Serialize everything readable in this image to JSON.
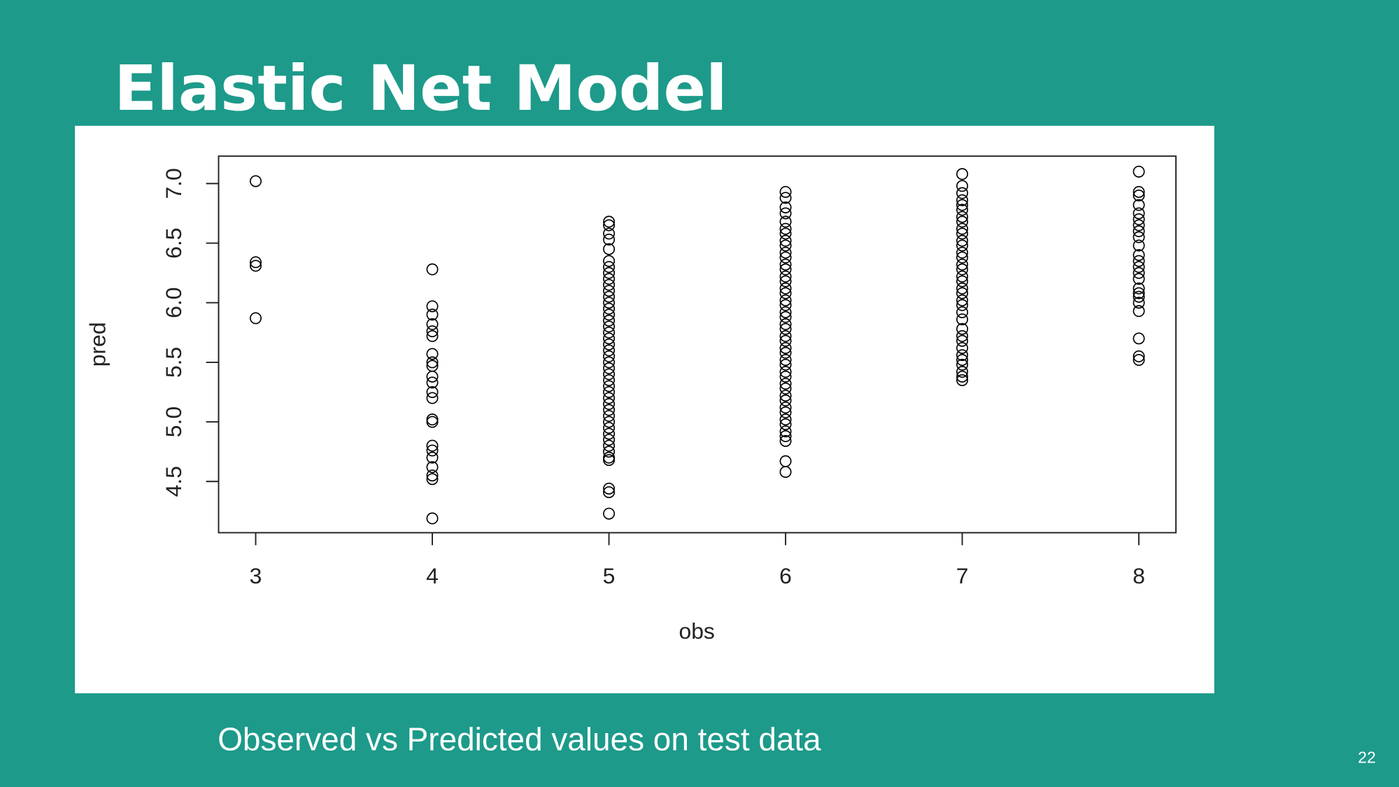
{
  "slide": {
    "title": "Elastic Net Model",
    "caption": "Observed vs Predicted values on test data",
    "page_number": "22"
  },
  "chart_data": {
    "type": "scatter",
    "x_label": "obs",
    "y_label": "pred",
    "marker_color": "#000000",
    "grid": false,
    "xlim": [
      2.79,
      8.21
    ],
    "ylim": [
      4.07,
      7.23
    ],
    "xticks": [
      3,
      4,
      5,
      6,
      7,
      8
    ],
    "yticks": [
      4.5,
      {
        "value": 5,
        "label": "5.0"
      },
      5.5,
      {
        "value": 6,
        "label": "6.0"
      },
      6.5,
      {
        "value": 7,
        "label": "7.0"
      }
    ],
    "x": [
      3,
      3,
      3,
      3,
      4,
      4,
      4,
      4,
      4,
      4,
      4,
      4,
      4,
      4,
      4,
      4,
      4,
      4,
      4,
      4,
      4,
      4,
      4,
      4,
      4,
      4,
      5,
      5,
      5,
      5,
      5,
      5,
      5,
      5,
      5,
      5,
      5,
      5,
      5,
      5,
      5,
      5,
      5,
      5,
      5,
      5,
      5,
      5,
      5,
      5,
      5,
      5,
      5,
      5,
      5,
      5,
      5,
      5,
      5,
      5,
      5,
      5,
      5,
      5,
      5,
      5,
      5,
      5,
      5,
      6,
      6,
      6,
      6,
      6,
      6,
      6,
      6,
      6,
      6,
      6,
      6,
      6,
      6,
      6,
      6,
      6,
      6,
      6,
      6,
      6,
      6,
      6,
      6,
      6,
      6,
      6,
      6,
      6,
      6,
      6,
      6,
      6,
      6,
      6,
      6,
      6,
      6,
      6,
      6,
      6,
      6,
      6,
      6,
      7,
      7,
      7,
      7,
      7,
      7,
      7,
      7,
      7,
      7,
      7,
      7,
      7,
      7,
      7,
      7,
      7,
      7,
      7,
      7,
      7,
      7,
      7,
      7,
      7,
      7,
      7,
      7,
      7,
      7,
      7,
      7,
      7,
      7,
      8,
      8,
      8,
      8,
      8,
      8,
      8,
      8,
      8,
      8,
      8,
      8,
      8,
      8,
      8,
      8,
      8,
      8,
      8,
      8,
      8,
      8,
      8
    ],
    "y": [
      7.02,
      6.34,
      6.31,
      5.87,
      6.28,
      5.97,
      5.9,
      5.82,
      5.76,
      5.72,
      5.57,
      5.5,
      5.47,
      5.38,
      5.33,
      5.25,
      5.2,
      5.02,
      5.0,
      4.8,
      4.76,
      4.7,
      4.62,
      4.55,
      4.52,
      4.19,
      6.68,
      6.65,
      6.58,
      6.53,
      6.45,
      6.35,
      6.3,
      6.25,
      6.2,
      6.15,
      6.1,
      6.05,
      6.0,
      5.95,
      5.9,
      5.85,
      5.8,
      5.75,
      5.7,
      5.65,
      5.6,
      5.55,
      5.5,
      5.45,
      5.4,
      5.35,
      5.3,
      5.25,
      5.2,
      5.15,
      5.1,
      5.05,
      5.0,
      4.95,
      4.9,
      4.85,
      4.8,
      4.75,
      4.7,
      4.68,
      4.44,
      4.41,
      4.23,
      6.93,
      6.88,
      6.8,
      6.75,
      6.68,
      6.62,
      6.58,
      6.52,
      6.48,
      6.42,
      6.38,
      6.32,
      6.28,
      6.22,
      6.18,
      6.12,
      6.08,
      6.02,
      5.98,
      5.92,
      5.88,
      5.82,
      5.78,
      5.72,
      5.68,
      5.62,
      5.58,
      5.52,
      5.48,
      5.42,
      5.38,
      5.32,
      5.28,
      5.22,
      5.18,
      5.12,
      5.08,
      5.02,
      4.98,
      4.92,
      4.88,
      4.84,
      4.67,
      4.58,
      7.08,
      6.98,
      6.92,
      6.86,
      6.82,
      6.78,
      6.72,
      6.68,
      6.62,
      6.58,
      6.52,
      6.48,
      6.42,
      6.38,
      6.32,
      6.28,
      6.22,
      6.18,
      6.12,
      6.08,
      6.02,
      5.98,
      5.92,
      5.86,
      5.78,
      5.72,
      5.68,
      5.62,
      5.56,
      5.52,
      5.48,
      5.42,
      5.38,
      5.35,
      7.1,
      6.93,
      6.9,
      6.82,
      6.75,
      6.7,
      6.65,
      6.6,
      6.55,
      6.48,
      6.4,
      6.35,
      6.3,
      6.25,
      6.2,
      6.12,
      6.08,
      6.05,
      6.0,
      5.93,
      5.7,
      5.55,
      5.52
    ]
  }
}
